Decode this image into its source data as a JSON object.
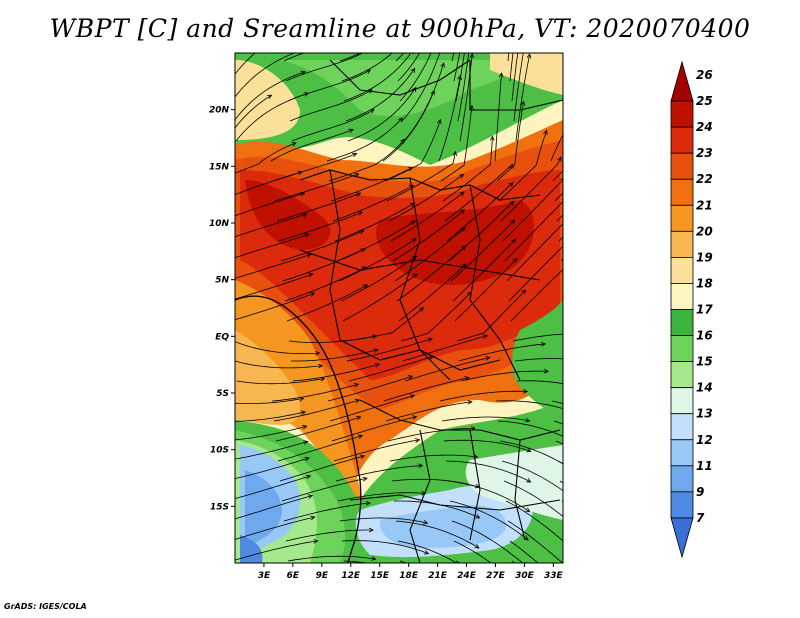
{
  "title": "WBPT [C] and Sreamline at 900hPa, VT: 2020070400",
  "footer": "GrADS: IGES/COLA",
  "x_ticks": [
    "3E",
    "6E",
    "9E",
    "12E",
    "15E",
    "18E",
    "21E",
    "24E",
    "27E",
    "30E",
    "33E"
  ],
  "y_ticks": [
    "20N",
    "15N",
    "10N",
    "5N",
    "EQ",
    "5S",
    "10S",
    "15S"
  ],
  "colorbar": {
    "labels": [
      "26",
      "25",
      "24",
      "23",
      "22",
      "21",
      "20",
      "19",
      "18",
      "17",
      "16",
      "15",
      "14",
      "13",
      "12",
      "11",
      "9",
      "7"
    ],
    "colors": [
      "#a50000",
      "#c01000",
      "#dc2a0c",
      "#e8500e",
      "#f07010",
      "#f49620",
      "#f7b650",
      "#fbe09a",
      "#fdf4c0",
      "#3cb43c",
      "#6ed35a",
      "#a6e88e",
      "#dff6e6",
      "#c2e0fb",
      "#98c8f6",
      "#6fa8ec",
      "#4e8ae4",
      "#3a6fd8"
    ]
  },
  "chart_data": {
    "type": "heatmap",
    "title": "WBPT [C] and Sreamline at 900hPa, VT: 2020070400",
    "variable": "WBPT [C]",
    "level": "900hPa",
    "valid_time": "2020070400",
    "overlay": "streamlines",
    "xlim": [
      0,
      34
    ],
    "ylim": [
      -20,
      25
    ],
    "x_ticks": [
      "3E",
      "6E",
      "9E",
      "12E",
      "15E",
      "18E",
      "21E",
      "24E",
      "27E",
      "30E",
      "33E"
    ],
    "y_ticks": [
      "20N",
      "15N",
      "10N",
      "5N",
      "EQ",
      "5S",
      "10S",
      "15S"
    ],
    "colorbar_levels": [
      7,
      9,
      11,
      12,
      13,
      14,
      15,
      16,
      17,
      18,
      19,
      20,
      21,
      22,
      23,
      24,
      25,
      26
    ]
  }
}
